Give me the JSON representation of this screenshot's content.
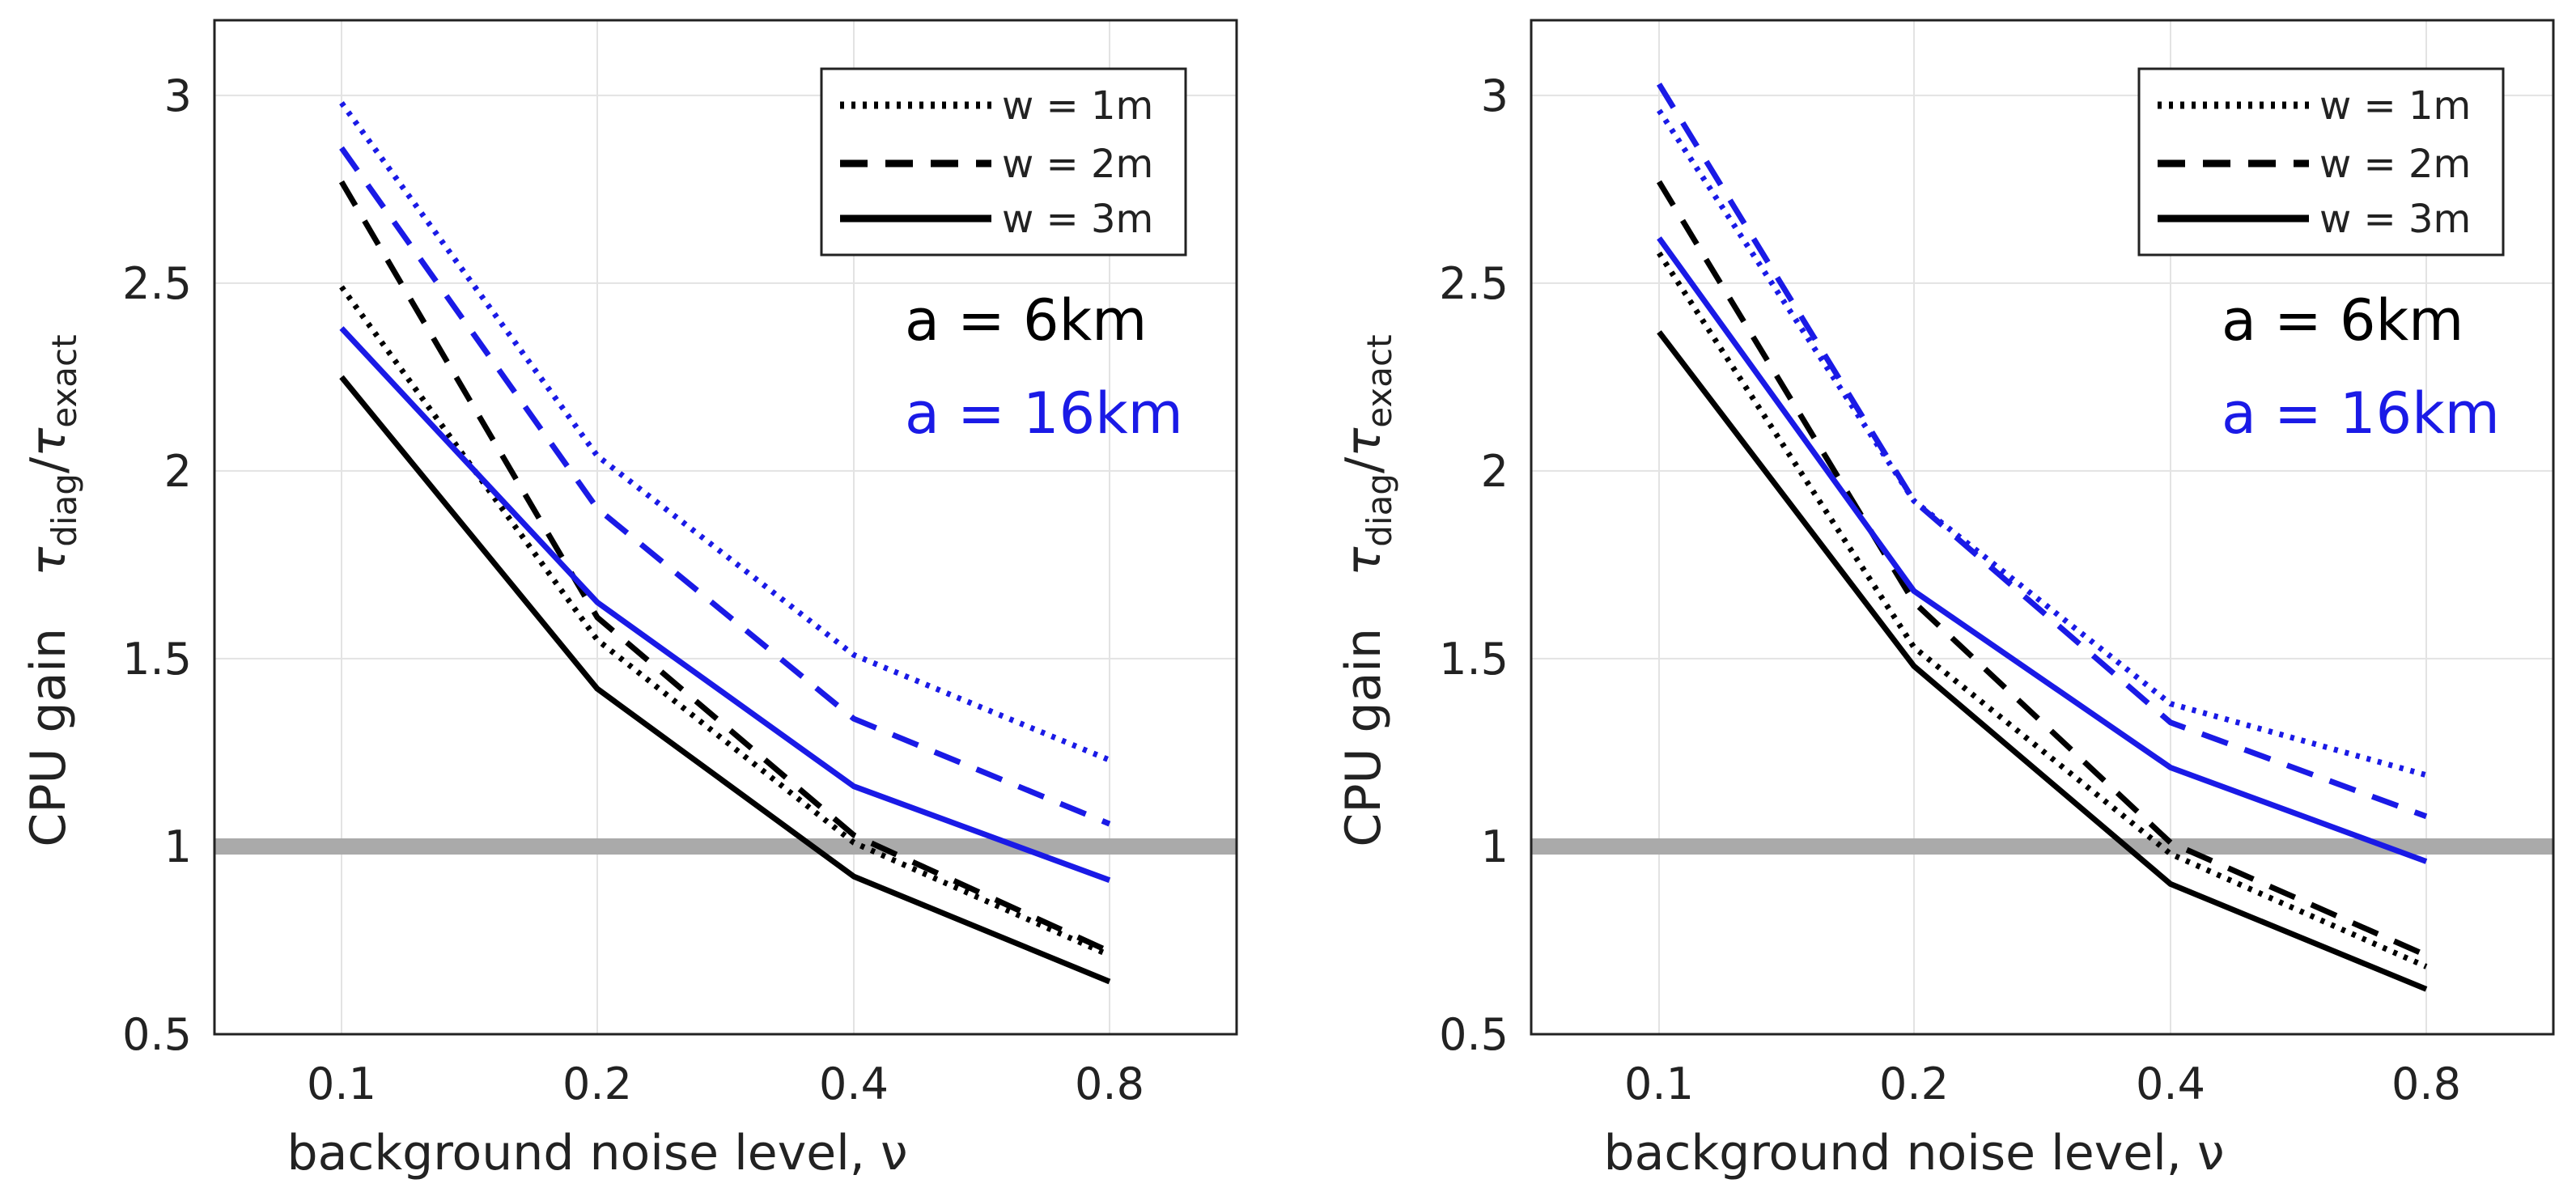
{
  "chart_data": [
    {
      "type": "line",
      "xlabel": "background noise level, ν",
      "ylabel": "CPU gain",
      "ylabel_ratio": {
        "num": "τ",
        "num_sub": "diag",
        "sep": "/",
        "den": "τ",
        "den_sub": "exact"
      },
      "categories": [
        "0.1",
        "0.2",
        "0.4",
        "0.8"
      ],
      "ylim": [
        0.5,
        3.2
      ],
      "yticks": [
        "0.5",
        "1",
        "1.5",
        "2",
        "2.5",
        "3"
      ],
      "ytick_values": [
        0.5,
        1,
        1.5,
        2,
        2.5,
        3
      ],
      "grid": true,
      "reference_line": {
        "y": 1,
        "color": "#aaaaaa"
      },
      "legend": {
        "position": "top-right",
        "entries": [
          {
            "label": "w = 1m",
            "style": "dotted"
          },
          {
            "label": "w = 2m",
            "style": "dashed"
          },
          {
            "label": "w = 3m",
            "style": "solid"
          }
        ]
      },
      "annotations": [
        {
          "text": "a = 6km",
          "color": "#000000"
        },
        {
          "text": "a = 16km",
          "color": "#1a1ae6"
        }
      ],
      "series": [
        {
          "name": "a = 6km, w = 1m",
          "color": "#000000",
          "style": "dotted",
          "values": [
            2.49,
            1.55,
            1.01,
            0.71
          ]
        },
        {
          "name": "a = 6km, w = 2m",
          "color": "#000000",
          "style": "dashed",
          "values": [
            2.77,
            1.61,
            1.03,
            0.72
          ]
        },
        {
          "name": "a = 6km, w = 3m",
          "color": "#000000",
          "style": "solid",
          "values": [
            2.25,
            1.42,
            0.92,
            0.64
          ]
        },
        {
          "name": "a = 16km, w = 1m",
          "color": "#1a1ae6",
          "style": "dotted",
          "values": [
            2.98,
            2.04,
            1.51,
            1.23
          ]
        },
        {
          "name": "a = 16km, w = 2m",
          "color": "#1a1ae6",
          "style": "dashed",
          "values": [
            2.86,
            1.9,
            1.34,
            1.06
          ]
        },
        {
          "name": "a = 16km, w = 3m",
          "color": "#1a1ae6",
          "style": "solid",
          "values": [
            2.38,
            1.65,
            1.16,
            0.91
          ]
        }
      ]
    },
    {
      "type": "line",
      "xlabel": "background noise level, ν",
      "ylabel": "CPU gain",
      "ylabel_ratio": {
        "num": "τ",
        "num_sub": "diag",
        "sep": "/",
        "den": "τ",
        "den_sub": "exact"
      },
      "categories": [
        "0.1",
        "0.2",
        "0.4",
        "0.8"
      ],
      "ylim": [
        0.5,
        3.2
      ],
      "yticks": [
        "0.5",
        "1",
        "1.5",
        "2",
        "2.5",
        "3"
      ],
      "ytick_values": [
        0.5,
        1,
        1.5,
        2,
        2.5,
        3
      ],
      "grid": true,
      "reference_line": {
        "y": 1,
        "color": "#aaaaaa"
      },
      "legend": {
        "position": "top-right",
        "entries": [
          {
            "label": "w = 1m",
            "style": "dotted"
          },
          {
            "label": "w = 2m",
            "style": "dashed"
          },
          {
            "label": "w = 3m",
            "style": "solid"
          }
        ]
      },
      "annotations": [
        {
          "text": "a = 6km",
          "color": "#000000"
        },
        {
          "text": "a = 16km",
          "color": "#1a1ae6"
        }
      ],
      "series": [
        {
          "name": "a = 6km, w = 1m",
          "color": "#000000",
          "style": "dotted",
          "values": [
            2.58,
            1.53,
            0.98,
            0.68
          ]
        },
        {
          "name": "a = 6km, w = 2m",
          "color": "#000000",
          "style": "dashed",
          "values": [
            2.77,
            1.65,
            1.01,
            0.71
          ]
        },
        {
          "name": "a = 6km, w = 3m",
          "color": "#000000",
          "style": "solid",
          "values": [
            2.37,
            1.48,
            0.9,
            0.62
          ]
        },
        {
          "name": "a = 16km, w = 1m",
          "color": "#1a1ae6",
          "style": "dotted",
          "values": [
            2.96,
            1.92,
            1.38,
            1.19
          ]
        },
        {
          "name": "a = 16km, w = 2m",
          "color": "#1a1ae6",
          "style": "dashed",
          "values": [
            3.03,
            1.92,
            1.33,
            1.08
          ]
        },
        {
          "name": "a = 16km, w = 3m",
          "color": "#1a1ae6",
          "style": "solid",
          "values": [
            2.62,
            1.68,
            1.21,
            0.96
          ]
        }
      ]
    }
  ]
}
